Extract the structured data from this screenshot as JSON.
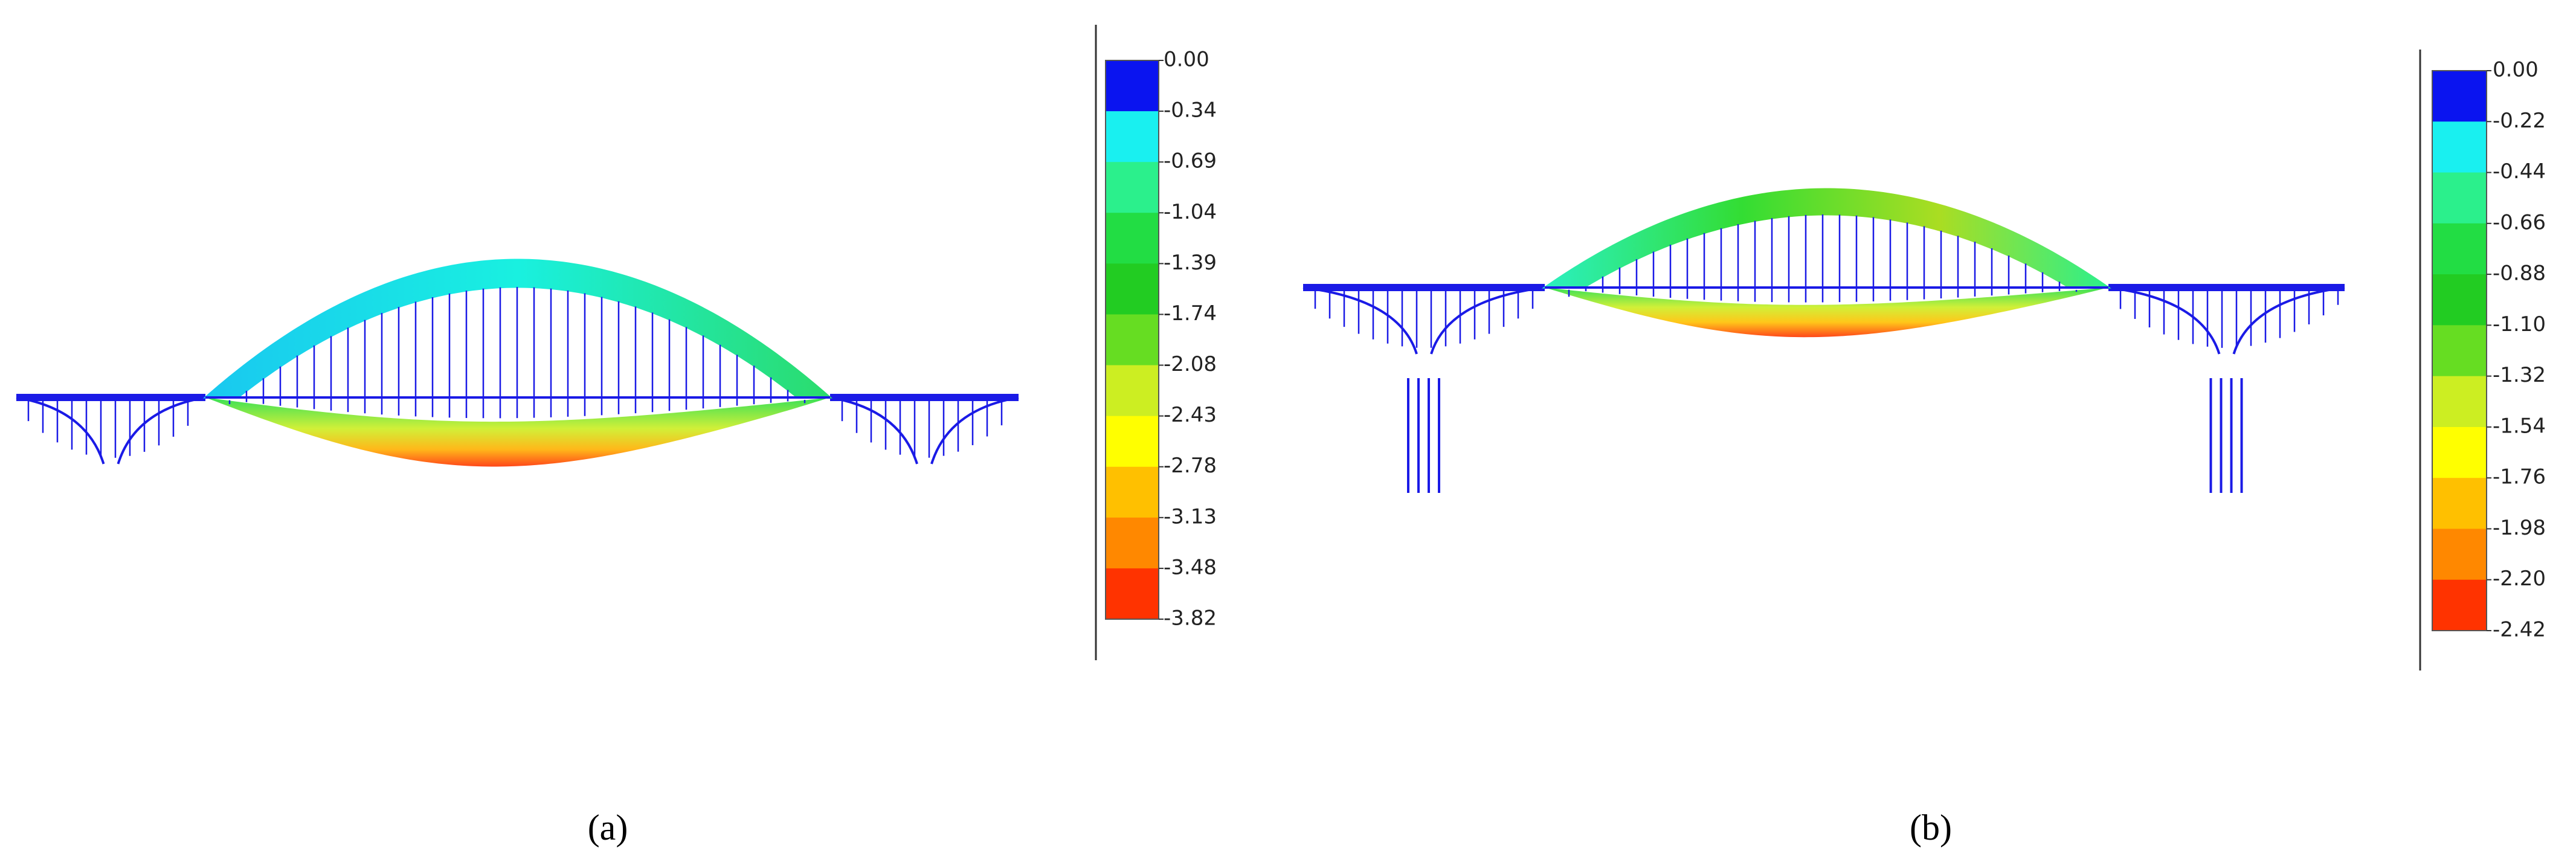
{
  "panels": [
    {
      "caption": "(a)",
      "legend": [
        "0.00",
        "-0.34",
        "-0.69",
        "-1.04",
        "-1.39",
        "-1.74",
        "-2.08",
        "-2.43",
        "-2.78",
        "-3.13",
        "-3.48",
        "-3.82"
      ]
    },
    {
      "caption": "(b)",
      "legend": [
        "0.00",
        "-0.22",
        "-0.44",
        "-0.66",
        "-0.88",
        "-1.10",
        "-1.32",
        "-1.54",
        "-1.76",
        "-1.98",
        "-2.20",
        "-2.42"
      ]
    }
  ]
}
